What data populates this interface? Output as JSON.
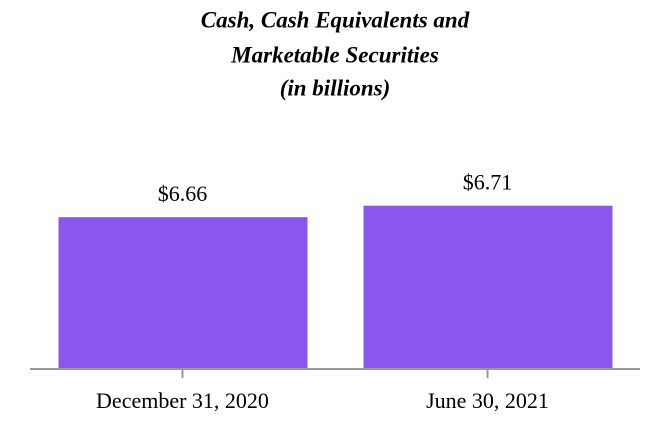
{
  "chart_data": {
    "type": "bar",
    "title": [
      "Cash, Cash Equivalents and",
      "Marketable Securities"
    ],
    "subtitle": "(in billions)",
    "categories": [
      "December 31, 2020",
      "June 30, 2021"
    ],
    "values": [
      6.66,
      6.71
    ],
    "value_labels": [
      "$6.66",
      "$6.71"
    ],
    "color": "#8a57ee",
    "ylim": [
      6,
      6.75
    ]
  }
}
